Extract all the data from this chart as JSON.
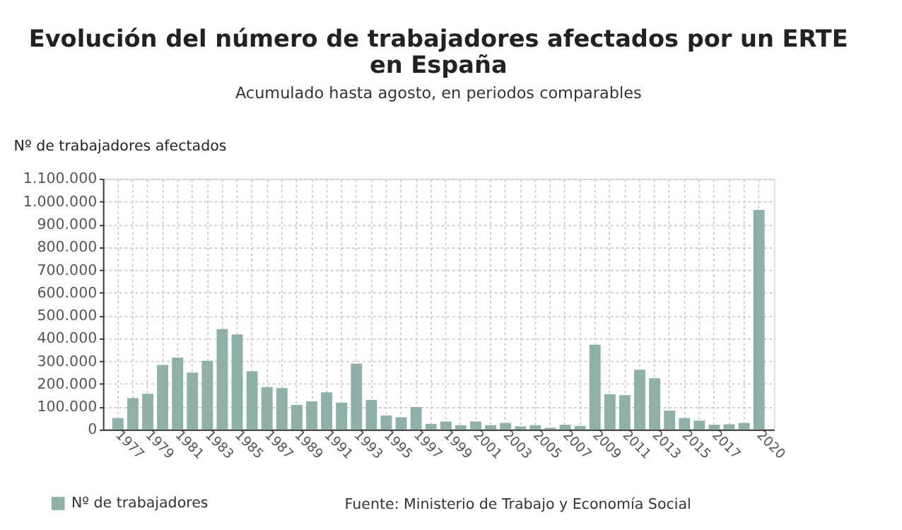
{
  "chart_data": {
    "type": "bar",
    "title": [
      "Evolución del número de trabajadores afectados por un ERTE",
      "en España"
    ],
    "subtitle": "Acumulado hasta agosto, en periodos comparables",
    "ylabel": "Nº de trabajadores afectados",
    "categories": [
      "1977",
      null,
      "1979",
      null,
      "1981",
      null,
      "1983",
      null,
      "1985",
      null,
      "1987",
      null,
      "1989",
      null,
      "1991",
      null,
      "1993",
      null,
      "1995",
      null,
      "1997",
      null,
      "1999",
      null,
      "2001",
      null,
      "2003",
      null,
      "2005",
      null,
      "2007",
      null,
      "2009",
      null,
      "2011",
      null,
      "2013",
      null,
      "2015",
      null,
      "2017",
      null,
      null,
      "2020"
    ],
    "series": [
      {
        "name": "Nº de trabajadores",
        "color": "#8fb0a8",
        "values": [
          50000,
          138000,
          157000,
          283000,
          316000,
          250000,
          302000,
          440000,
          417000,
          256000,
          186000,
          182000,
          108000,
          124000,
          163000,
          118000,
          289000,
          130000,
          62000,
          54000,
          99000,
          25000,
          35000,
          19000,
          35000,
          19000,
          29000,
          14000,
          19000,
          8000,
          21000,
          16000,
          372000,
          155000,
          151000,
          262000,
          225000,
          83000,
          50000,
          39000,
          21000,
          23000,
          29000,
          963000
        ]
      }
    ],
    "ylim": [
      0,
      1100000
    ],
    "yticks": [
      0,
      {
        "value": 100000,
        "label": "100.000"
      },
      {
        "value": 200000,
        "label": "200.000"
      },
      {
        "value": 300000,
        "label": "300.000"
      },
      {
        "value": 400000,
        "label": "400.000"
      },
      {
        "value": 500000,
        "label": "500.000"
      },
      {
        "value": 600000,
        "label": "600.000"
      },
      {
        "value": 700000,
        "label": "700.000"
      },
      {
        "value": 800000,
        "label": "800.000"
      },
      {
        "value": 900000,
        "label": "900.000"
      },
      {
        "value": 1000000,
        "label": "1.000.000"
      },
      {
        "value": 1100000,
        "label": "1.100.000"
      }
    ],
    "grid": true,
    "legend": "bottom left",
    "annotations": [
      "Fuente: Ministerio de Trabajo y Economía Social"
    ]
  }
}
